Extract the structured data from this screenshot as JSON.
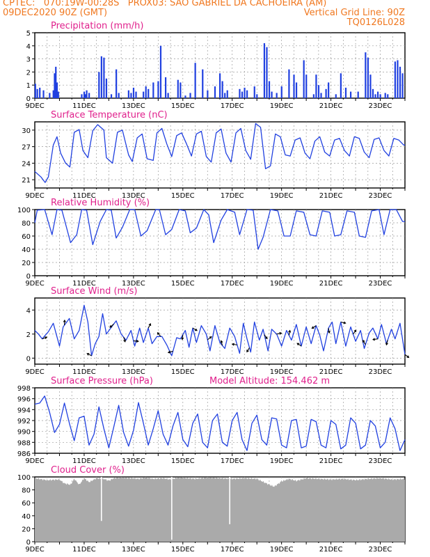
{
  "header": {
    "line1_left": "CPTEC:   070:19W-00:28S   PROX03: SAO GABRIEL DA CACHOEIRA (AM)",
    "line2_left": "09DEC2020 90Z (GMT)",
    "line2_right": "Vertical Grid Line: 90Z",
    "line3_right": "TQ0126L028"
  },
  "colors": {
    "header": "#f07820",
    "title": "#e0208c",
    "line": "#2040e0",
    "cloud": "#aaaaaa"
  },
  "x_axis": {
    "labels": [
      "9DEC",
      "11DEC",
      "13DEC",
      "15DEC",
      "17DEC",
      "19DEC",
      "21DEC",
      "23DEC"
    ],
    "day_range": [
      0,
      15
    ]
  },
  "chart_data": [
    {
      "type": "bar",
      "title": "Precipitation (mm/h)",
      "ylim": [
        0,
        5
      ],
      "yticks": [
        0,
        1,
        2,
        3,
        4,
        5
      ],
      "series": [
        {
          "days": [
            0.02,
            0.1,
            0.2,
            0.35,
            0.6,
            0.75,
            0.8,
            0.85,
            0.9,
            0.95,
            1.9,
            2.0,
            2.05,
            2.1,
            2.2,
            2.6,
            2.7,
            2.8,
            2.9,
            3.1,
            3.3,
            3.4,
            3.8,
            3.9,
            4.0,
            4.1,
            4.4,
            4.5,
            4.6,
            4.8,
            5.0,
            5.1,
            5.3,
            5.4,
            5.8,
            5.9,
            6.1,
            6.3,
            6.5,
            6.8,
            7.0,
            7.3,
            7.5,
            7.6,
            7.7,
            7.8,
            8.3,
            8.4,
            8.5,
            8.6,
            8.9,
            9.0,
            9.3,
            9.4,
            9.5,
            9.6,
            9.8,
            10.0,
            10.3,
            10.5,
            10.6,
            10.9,
            11.0,
            11.3,
            11.4,
            11.5,
            11.6,
            11.8,
            11.9,
            12.2,
            12.4,
            12.6,
            12.8,
            13.1,
            13.4,
            13.5,
            13.6,
            13.7,
            13.8,
            13.9,
            14.0,
            14.2,
            14.3,
            14.6,
            14.7,
            14.8,
            14.9
          ],
          "values": [
            1.1,
            0.7,
            0.8,
            0.6,
            0.4,
            0.6,
            1.9,
            2.4,
            1.2,
            0.5,
            0.3,
            0.5,
            0.3,
            0.6,
            0.4,
            2.0,
            3.2,
            3.1,
            1.5,
            0.3,
            2.2,
            0.4,
            0.6,
            0.4,
            0.8,
            0.5,
            0.5,
            0.9,
            0.7,
            1.2,
            1.3,
            4.0,
            1.6,
            0.4,
            1.4,
            1.2,
            0.2,
            0.4,
            2.7,
            2.2,
            0.6,
            0.9,
            1.9,
            1.3,
            0.4,
            0.6,
            0.7,
            0.5,
            0.8,
            0.6,
            0.9,
            0.3,
            4.2,
            3.9,
            1.3,
            0.5,
            0.4,
            0.9,
            2.2,
            1.8,
            1.2,
            2.9,
            1.8,
            0.3,
            1.8,
            1.0,
            0.4,
            0.7,
            1.2,
            0.3,
            1.9,
            0.8,
            0.5,
            0.5,
            3.5,
            3.1,
            1.8,
            0.7,
            0.3,
            0.5,
            0.3,
            0.4,
            0.3,
            2.8,
            2.9,
            2.4,
            1.9
          ]
        }
      ]
    },
    {
      "type": "line",
      "title": "Surface Temperature (nC)",
      "ylim": [
        19.5,
        31.5
      ],
      "yticks": [
        21,
        24,
        27,
        30
      ],
      "series": [
        {
          "days": [
            0,
            0.25,
            0.42,
            0.55,
            0.75,
            0.9,
            1.05,
            1.25,
            1.42,
            1.6,
            1.8,
            1.95,
            2.15,
            2.35,
            2.55,
            2.8,
            2.9,
            3.15,
            3.35,
            3.55,
            3.8,
            3.95,
            4.15,
            4.35,
            4.55,
            4.8,
            4.95,
            5.15,
            5.35,
            5.55,
            5.75,
            5.95,
            6.15,
            6.35,
            6.55,
            6.75,
            6.95,
            7.15,
            7.35,
            7.55,
            7.75,
            7.95,
            8.15,
            8.35,
            8.55,
            8.75,
            8.95,
            9.15,
            9.35,
            9.55,
            9.75,
            9.95,
            10.15,
            10.35,
            10.55,
            10.75,
            10.95,
            11.15,
            11.35,
            11.55,
            11.75,
            11.95,
            12.15,
            12.35,
            12.55,
            12.75,
            12.95,
            13.15,
            13.35,
            13.55,
            13.75,
            13.95,
            14.15,
            14.35,
            14.55,
            14.75,
            14.95,
            15.0
          ],
          "values": [
            22.5,
            21.5,
            20.5,
            21.5,
            27.3,
            28.8,
            25.8,
            24.0,
            23.3,
            29.6,
            30.1,
            26.3,
            25.0,
            29.9,
            31.0,
            30.0,
            25.0,
            24.0,
            29.6,
            30.0,
            25.5,
            24.3,
            28.6,
            29.3,
            24.8,
            24.5,
            29.5,
            30.3,
            27.5,
            25.2,
            29.0,
            29.5,
            27.5,
            25.3,
            29.3,
            29.8,
            25.2,
            24.2,
            29.5,
            30.2,
            25.8,
            24.2,
            29.5,
            30.3,
            26.3,
            24.7,
            31.2,
            30.5,
            23.0,
            23.5,
            29.3,
            28.8,
            25.5,
            25.3,
            28.2,
            28.6,
            25.8,
            24.8,
            28.0,
            28.8,
            26.0,
            25.3,
            28.2,
            28.5,
            26.3,
            25.3,
            28.8,
            28.5,
            26.0,
            25.0,
            28.3,
            28.6,
            26.3,
            25.3,
            28.5,
            28.2,
            27.3,
            27.3
          ]
        }
      ]
    },
    {
      "type": "line",
      "title": "Relative Humidity (%)",
      "ylim": [
        0,
        100
      ],
      "yticks": [
        0,
        20,
        40,
        60,
        80,
        100
      ],
      "series": [
        {
          "days": [
            0,
            0.1,
            0.4,
            0.7,
            0.9,
            1.1,
            1.45,
            1.7,
            1.9,
            2.1,
            2.35,
            2.65,
            2.9,
            3.1,
            3.3,
            3.55,
            3.85,
            4.05,
            4.3,
            4.55,
            4.9,
            5.05,
            5.3,
            5.55,
            5.85,
            6.1,
            6.3,
            6.55,
            6.85,
            7.05,
            7.25,
            7.55,
            7.8,
            8.1,
            8.3,
            8.6,
            8.85,
            9.05,
            9.25,
            9.55,
            9.85,
            10.1,
            10.35,
            10.6,
            10.9,
            11.15,
            11.4,
            11.65,
            11.95,
            12.15,
            12.4,
            12.65,
            12.95,
            13.15,
            13.4,
            13.65,
            13.95,
            14.15,
            14.4,
            14.65,
            14.9,
            15.0
          ],
          "values": [
            80,
            99,
            100,
            62,
            100,
            99,
            50,
            62,
            100,
            99,
            47,
            82,
            100,
            99,
            57,
            73,
            100,
            100,
            60,
            68,
            100,
            100,
            62,
            70,
            100,
            98,
            65,
            72,
            100,
            92,
            50,
            84,
            100,
            96,
            62,
            100,
            99,
            40,
            58,
            100,
            98,
            60,
            60,
            98,
            96,
            62,
            60,
            98,
            96,
            60,
            62,
            98,
            96,
            60,
            58,
            98,
            100,
            62,
            100,
            100,
            82,
            82
          ]
        }
      ]
    },
    {
      "type": "line",
      "title": "Surface Wind (m/s)",
      "ylim": [
        -0.5,
        5
      ],
      "yticks": [
        0,
        2,
        4
      ],
      "series": [
        {
          "days": [
            0,
            0.15,
            0.3,
            0.55,
            0.75,
            1.0,
            1.15,
            1.4,
            1.6,
            1.8,
            2.0,
            2.15,
            2.3,
            2.45,
            2.6,
            2.75,
            2.9,
            3.15,
            3.3,
            3.5,
            3.7,
            3.9,
            4.05,
            4.25,
            4.4,
            4.6,
            4.75,
            4.95,
            5.15,
            5.35,
            5.55,
            5.75,
            5.9,
            6.1,
            6.25,
            6.4,
            6.55,
            6.75,
            6.95,
            7.1,
            7.3,
            7.5,
            7.7,
            7.9,
            8.1,
            8.3,
            8.45,
            8.6,
            8.75,
            8.9,
            9.1,
            9.25,
            9.45,
            9.6,
            9.8,
            10.0,
            10.2,
            10.4,
            10.6,
            10.8,
            11.0,
            11.2,
            11.4,
            11.55,
            11.7,
            11.9,
            12.05,
            12.2,
            12.4,
            12.6,
            12.8,
            13.0,
            13.2,
            13.35,
            13.55,
            13.7,
            13.9,
            14.05,
            14.25,
            14.45,
            14.6,
            14.8,
            15.0
          ],
          "values": [
            2.3,
            2.0,
            1.6,
            2.2,
            2.9,
            1.0,
            2.6,
            3.3,
            1.6,
            2.3,
            4.4,
            3.0,
            0.2,
            1.2,
            1.8,
            3.7,
            2.0,
            2.7,
            3.1,
            2.0,
            1.5,
            2.3,
            1.0,
            2.5,
            1.3,
            2.5,
            1.2,
            1.8,
            1.8,
            1.1,
            0.2,
            1.7,
            1.6,
            2.3,
            0.9,
            2.5,
            1.3,
            2.7,
            2.0,
            0.6,
            2.7,
            1.3,
            0.8,
            2.5,
            1.8,
            0.4,
            2.9,
            1.6,
            0.5,
            3.0,
            1.5,
            2.4,
            0.6,
            2.4,
            2.0,
            1.0,
            2.3,
            1.5,
            2.8,
            1.0,
            2.6,
            1.2,
            2.7,
            1.9,
            0.6,
            2.5,
            3.0,
            1.2,
            3.0,
            1.0,
            2.6,
            1.4,
            2.3,
            0.8,
            2.1,
            2.5,
            1.6,
            2.8,
            1.2,
            2.4,
            1.6,
            2.9,
            0.3
          ]
        }
      ]
    },
    {
      "type": "line",
      "title": "Surface Pressure (hPa)",
      "annotation": "Model Altitude: 154.462 m",
      "ylim": [
        986,
        998
      ],
      "yticks": [
        986,
        988,
        990,
        992,
        994,
        996,
        998
      ],
      "series": [
        {
          "days": [
            0,
            0.2,
            0.4,
            0.6,
            0.8,
            1.0,
            1.2,
            1.4,
            1.6,
            1.8,
            2.0,
            2.2,
            2.4,
            2.6,
            2.8,
            3.0,
            3.2,
            3.4,
            3.6,
            3.8,
            4.0,
            4.2,
            4.4,
            4.6,
            4.8,
            5.0,
            5.2,
            5.4,
            5.6,
            5.8,
            6.0,
            6.2,
            6.4,
            6.6,
            6.8,
            7.0,
            7.2,
            7.4,
            7.6,
            7.8,
            8.0,
            8.2,
            8.4,
            8.6,
            8.8,
            9.0,
            9.2,
            9.4,
            9.6,
            9.8,
            10.0,
            10.2,
            10.4,
            10.6,
            10.8,
            11.0,
            11.2,
            11.4,
            11.6,
            11.8,
            12.0,
            12.2,
            12.4,
            12.6,
            12.8,
            13.0,
            13.2,
            13.4,
            13.6,
            13.8,
            14.0,
            14.2,
            14.4,
            14.6,
            14.8,
            15.0
          ],
          "values": [
            995,
            995.2,
            996.5,
            993.5,
            989.8,
            991.3,
            995.2,
            991.5,
            988.3,
            992.5,
            992.8,
            987.5,
            989.5,
            994.5,
            990.5,
            987.0,
            990.8,
            994.8,
            989.8,
            987.3,
            990.2,
            995.3,
            991.5,
            987.5,
            990.5,
            993.8,
            989.5,
            987.5,
            991.0,
            993.5,
            988.5,
            987.2,
            991.5,
            993.2,
            988.0,
            987.0,
            992.0,
            993.2,
            988.0,
            987.3,
            992.0,
            993.5,
            988.5,
            986.5,
            991.5,
            993.0,
            988.5,
            987.5,
            992.5,
            992.3,
            987.5,
            987.0,
            992.0,
            992.2,
            987.0,
            987.3,
            992.2,
            991.8,
            987.5,
            987.0,
            992.0,
            991.3,
            986.8,
            987.5,
            992.5,
            991.5,
            986.8,
            987.5,
            992.0,
            991.0,
            987.0,
            988.0,
            992.5,
            990.5,
            986.5,
            988.5
          ]
        }
      ]
    },
    {
      "type": "area",
      "title": "Cloud Cover (%)",
      "ylim": [
        0,
        100
      ],
      "yticks": [
        0,
        20,
        40,
        60,
        80,
        100
      ],
      "series": [
        {
          "days": [
            0,
            0.5,
            1.0,
            1.2,
            1.45,
            1.6,
            1.8,
            2.0,
            2.2,
            2.5,
            2.8,
            3.0,
            3.2,
            3.5,
            3.9,
            4.2,
            4.5,
            4.8,
            5.2,
            5.5,
            5.8,
            6.2,
            6.5,
            7.0,
            7.5,
            8.0,
            8.5,
            9.0,
            9.5,
            9.7,
            10.0,
            10.3,
            10.6,
            11.0,
            11.5,
            12.0,
            12.5,
            13.0,
            13.5,
            14.0,
            14.5,
            15.0
          ],
          "values": [
            98,
            95,
            96,
            90,
            88,
            97,
            88,
            98,
            92,
            98,
            97,
            94,
            98,
            99,
            98,
            97,
            99,
            97,
            98,
            96,
            99,
            98,
            97,
            99,
            98,
            97,
            98,
            97,
            88,
            85,
            93,
            97,
            94,
            98,
            97,
            96,
            97,
            95,
            97,
            98,
            96,
            97
          ],
          "dips": [
            {
              "day": 2.7,
              "value": 32
            },
            {
              "day": 5.55,
              "value": 3
            },
            {
              "day": 7.9,
              "value": 27
            }
          ]
        }
      ]
    }
  ]
}
